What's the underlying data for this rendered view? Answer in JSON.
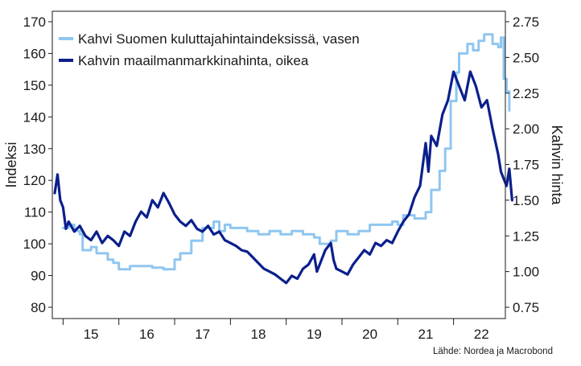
{
  "chart_data": {
    "type": "line",
    "title": "",
    "source": "Lähde: Nordea ja Macrobond",
    "y_left": {
      "label": "Indeksi",
      "min": 80,
      "max": 170,
      "ticks": [
        80,
        90,
        100,
        110,
        120,
        130,
        140,
        150,
        160,
        170
      ]
    },
    "y_right": {
      "label": "Kahvin hinta",
      "min": 0.75,
      "max": 2.75,
      "ticks": [
        "0.75",
        "1.00",
        "1.25",
        "1.50",
        "1.75",
        "2.00",
        "2.25",
        "2.50",
        "2.75"
      ]
    },
    "x": {
      "min": 2014.85,
      "max": 2022.9,
      "ticks": [
        "15",
        "16",
        "17",
        "18",
        "19",
        "20",
        "21",
        "22"
      ]
    },
    "legend": {
      "position": "top-left"
    },
    "series": [
      {
        "name": "Kahvi Suomen kuluttajahintaindeksissä, vasen",
        "axis": "left",
        "color": "#8fc6f0",
        "step": true,
        "points": [
          [
            2015.0,
            105
          ],
          [
            2015.1,
            106
          ],
          [
            2015.2,
            104
          ],
          [
            2015.3,
            103
          ],
          [
            2015.35,
            98
          ],
          [
            2015.5,
            99
          ],
          [
            2015.6,
            97
          ],
          [
            2015.8,
            95
          ],
          [
            2015.9,
            94
          ],
          [
            2016.0,
            92
          ],
          [
            2016.2,
            93
          ],
          [
            2016.4,
            93
          ],
          [
            2016.6,
            92.5
          ],
          [
            2016.8,
            92
          ],
          [
            2016.9,
            92
          ],
          [
            2017.0,
            95
          ],
          [
            2017.1,
            97
          ],
          [
            2017.3,
            101
          ],
          [
            2017.5,
            105
          ],
          [
            2017.7,
            107
          ],
          [
            2017.8,
            104
          ],
          [
            2017.9,
            106
          ],
          [
            2018.0,
            105
          ],
          [
            2018.3,
            104
          ],
          [
            2018.5,
            103
          ],
          [
            2018.7,
            104
          ],
          [
            2018.9,
            103
          ],
          [
            2019.1,
            104
          ],
          [
            2019.3,
            103
          ],
          [
            2019.5,
            102
          ],
          [
            2019.6,
            100
          ],
          [
            2019.8,
            101
          ],
          [
            2019.9,
            104
          ],
          [
            2020.1,
            103
          ],
          [
            2020.3,
            104
          ],
          [
            2020.5,
            106
          ],
          [
            2020.7,
            106
          ],
          [
            2020.9,
            107
          ],
          [
            2021.0,
            106
          ],
          [
            2021.1,
            109
          ],
          [
            2021.3,
            108
          ],
          [
            2021.5,
            110
          ],
          [
            2021.6,
            117
          ],
          [
            2021.75,
            123
          ],
          [
            2021.85,
            130
          ],
          [
            2021.95,
            145
          ],
          [
            2022.05,
            154
          ],
          [
            2022.1,
            160
          ],
          [
            2022.25,
            163
          ],
          [
            2022.35,
            161
          ],
          [
            2022.45,
            164
          ],
          [
            2022.55,
            166
          ],
          [
            2022.7,
            163
          ],
          [
            2022.8,
            162
          ],
          [
            2022.85,
            165
          ],
          [
            2022.9,
            152
          ],
          [
            2022.95,
            148
          ],
          [
            2023.0,
            142
          ]
        ]
      },
      {
        "name": "Kahvin maailmanmarkkinahinta, oikea",
        "axis": "right",
        "color": "#0b1f8c",
        "step": false,
        "points": [
          [
            2014.85,
            1.55
          ],
          [
            2014.9,
            1.68
          ],
          [
            2014.95,
            1.5
          ],
          [
            2015.0,
            1.45
          ],
          [
            2015.05,
            1.3
          ],
          [
            2015.1,
            1.35
          ],
          [
            2015.2,
            1.28
          ],
          [
            2015.3,
            1.32
          ],
          [
            2015.4,
            1.25
          ],
          [
            2015.5,
            1.22
          ],
          [
            2015.6,
            1.28
          ],
          [
            2015.7,
            1.2
          ],
          [
            2015.8,
            1.25
          ],
          [
            2015.9,
            1.22
          ],
          [
            2016.0,
            1.18
          ],
          [
            2016.1,
            1.28
          ],
          [
            2016.2,
            1.25
          ],
          [
            2016.3,
            1.35
          ],
          [
            2016.4,
            1.42
          ],
          [
            2016.5,
            1.38
          ],
          [
            2016.6,
            1.5
          ],
          [
            2016.7,
            1.45
          ],
          [
            2016.8,
            1.55
          ],
          [
            2016.9,
            1.48
          ],
          [
            2017.0,
            1.4
          ],
          [
            2017.1,
            1.35
          ],
          [
            2017.2,
            1.32
          ],
          [
            2017.3,
            1.36
          ],
          [
            2017.4,
            1.3
          ],
          [
            2017.5,
            1.28
          ],
          [
            2017.6,
            1.32
          ],
          [
            2017.7,
            1.26
          ],
          [
            2017.8,
            1.28
          ],
          [
            2017.9,
            1.22
          ],
          [
            2018.0,
            1.2
          ],
          [
            2018.1,
            1.18
          ],
          [
            2018.2,
            1.15
          ],
          [
            2018.3,
            1.14
          ],
          [
            2018.4,
            1.1
          ],
          [
            2018.5,
            1.06
          ],
          [
            2018.6,
            1.02
          ],
          [
            2018.7,
            1.0
          ],
          [
            2018.8,
            0.98
          ],
          [
            2018.9,
            0.95
          ],
          [
            2019.0,
            0.92
          ],
          [
            2019.1,
            0.97
          ],
          [
            2019.2,
            0.95
          ],
          [
            2019.3,
            1.02
          ],
          [
            2019.4,
            1.05
          ],
          [
            2019.5,
            1.12
          ],
          [
            2019.55,
            1.0
          ],
          [
            2019.6,
            1.05
          ],
          [
            2019.7,
            1.15
          ],
          [
            2019.8,
            1.2
          ],
          [
            2019.85,
            1.08
          ],
          [
            2019.9,
            1.02
          ],
          [
            2020.0,
            1.0
          ],
          [
            2020.1,
            0.98
          ],
          [
            2020.2,
            1.05
          ],
          [
            2020.3,
            1.1
          ],
          [
            2020.4,
            1.15
          ],
          [
            2020.5,
            1.12
          ],
          [
            2020.6,
            1.2
          ],
          [
            2020.7,
            1.18
          ],
          [
            2020.8,
            1.22
          ],
          [
            2020.9,
            1.2
          ],
          [
            2021.0,
            1.28
          ],
          [
            2021.1,
            1.35
          ],
          [
            2021.2,
            1.4
          ],
          [
            2021.3,
            1.52
          ],
          [
            2021.4,
            1.6
          ],
          [
            2021.5,
            1.9
          ],
          [
            2021.55,
            1.7
          ],
          [
            2021.6,
            1.95
          ],
          [
            2021.7,
            1.88
          ],
          [
            2021.8,
            2.1
          ],
          [
            2021.9,
            2.2
          ],
          [
            2022.0,
            2.4
          ],
          [
            2022.1,
            2.3
          ],
          [
            2022.2,
            2.2
          ],
          [
            2022.3,
            2.4
          ],
          [
            2022.4,
            2.3
          ],
          [
            2022.5,
            2.15
          ],
          [
            2022.6,
            2.2
          ],
          [
            2022.7,
            2.0
          ],
          [
            2022.8,
            1.82
          ],
          [
            2022.85,
            1.7
          ],
          [
            2022.9,
            1.65
          ],
          [
            2022.95,
            1.6
          ],
          [
            2023.0,
            1.72
          ],
          [
            2023.05,
            1.5
          ]
        ]
      }
    ]
  }
}
